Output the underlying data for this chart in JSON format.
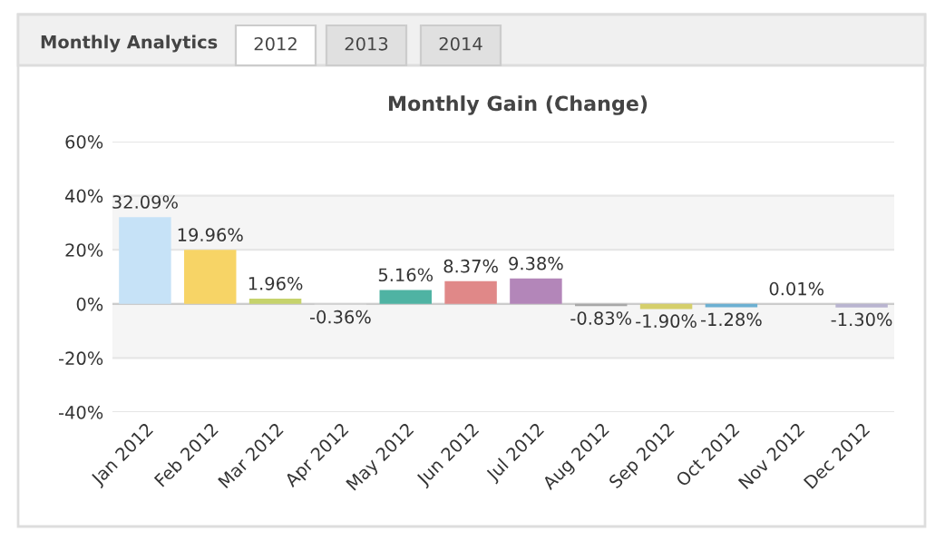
{
  "chart_data": {
    "type": "bar",
    "title": "Monthly Gain (Change)",
    "annotations": [
      "Monthly Analytics",
      "2012",
      "2013",
      "2014"
    ],
    "categories": [
      "Jan 2012",
      "Feb 2012",
      "Mar 2012",
      "Apr 2012",
      "May 2012",
      "Jun 2012",
      "Jul 2012",
      "Aug 2012",
      "Sep 2012",
      "Oct 2012",
      "Nov 2012",
      "Dec 2012"
    ],
    "values": [
      32.09,
      19.96,
      1.96,
      -0.36,
      5.16,
      8.37,
      9.38,
      -0.83,
      -1.9,
      -1.28,
      0.01,
      -1.3
    ],
    "value_labels": [
      "32.09%",
      "19.96%",
      "1.96%",
      "-0.36%",
      "5.16%",
      "8.37%",
      "9.38%",
      "-0.83%",
      "-1.90%",
      "-1.28%",
      "0.01%",
      "-1.30%"
    ],
    "colors": [
      "#c6e2f7",
      "#f7d466",
      "#c6d36c",
      "#d9d9d9",
      "#4fb3a3",
      "#e08888",
      "#b386b9",
      "#a8a8a8",
      "#d5cf6b",
      "#6cb0d2",
      "#cccccc",
      "#b9b4d0"
    ],
    "ylim": [
      -40,
      60
    ],
    "yticks": [
      {
        "value": -40,
        "label": "-40%"
      },
      {
        "value": -20,
        "label": "-20%"
      },
      {
        "value": 0,
        "label": "0%"
      },
      {
        "value": 20,
        "label": "20%"
      },
      {
        "value": 40,
        "label": "40%"
      },
      {
        "value": 60,
        "label": "60%"
      }
    ],
    "bands": [
      {
        "axis": "y",
        "from": 20,
        "to": 40,
        "color": "#f5f5f5"
      },
      {
        "axis": "y",
        "from": -20,
        "to": 0,
        "color": "#f5f5f5"
      }
    ],
    "grid": "y"
  }
}
